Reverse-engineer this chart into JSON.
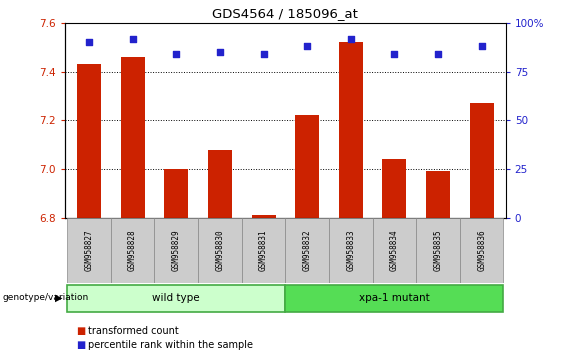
{
  "title": "GDS4564 / 185096_at",
  "samples": [
    "GSM958827",
    "GSM958828",
    "GSM958829",
    "GSM958830",
    "GSM958831",
    "GSM958832",
    "GSM958833",
    "GSM958834",
    "GSM958835",
    "GSM958836"
  ],
  "transformed_count": [
    7.43,
    7.46,
    7.0,
    7.08,
    6.81,
    7.22,
    7.52,
    7.04,
    6.99,
    7.27
  ],
  "percentile_rank": [
    90,
    92,
    84,
    85,
    84,
    88,
    92,
    84,
    84,
    88
  ],
  "ylim_left": [
    6.8,
    7.6
  ],
  "ylim_right": [
    0,
    100
  ],
  "yticks_left": [
    6.8,
    7.0,
    7.2,
    7.4,
    7.6
  ],
  "yticks_right": [
    0,
    25,
    50,
    75,
    100
  ],
  "bar_color": "#cc2200",
  "dot_color": "#2222cc",
  "grid_color": "#555555",
  "groups": [
    {
      "label": "wild type",
      "start": 0,
      "end": 4,
      "color": "#ccffcc",
      "border": "#44aa44"
    },
    {
      "label": "xpa-1 mutant",
      "start": 5,
      "end": 9,
      "color": "#55dd55",
      "border": "#44aa44"
    }
  ],
  "group_row_label": "genotype/variation",
  "legend_items": [
    {
      "label": "transformed count",
      "color": "#cc2200"
    },
    {
      "label": "percentile rank within the sample",
      "color": "#2222cc"
    }
  ],
  "tick_label_color": "#cc2200",
  "right_tick_color": "#2222cc",
  "bg_color": "#ffffff",
  "plot_bg_color": "#ffffff",
  "bar_width": 0.55,
  "sample_cell_color": "#cccccc",
  "sample_cell_border": "#888888"
}
